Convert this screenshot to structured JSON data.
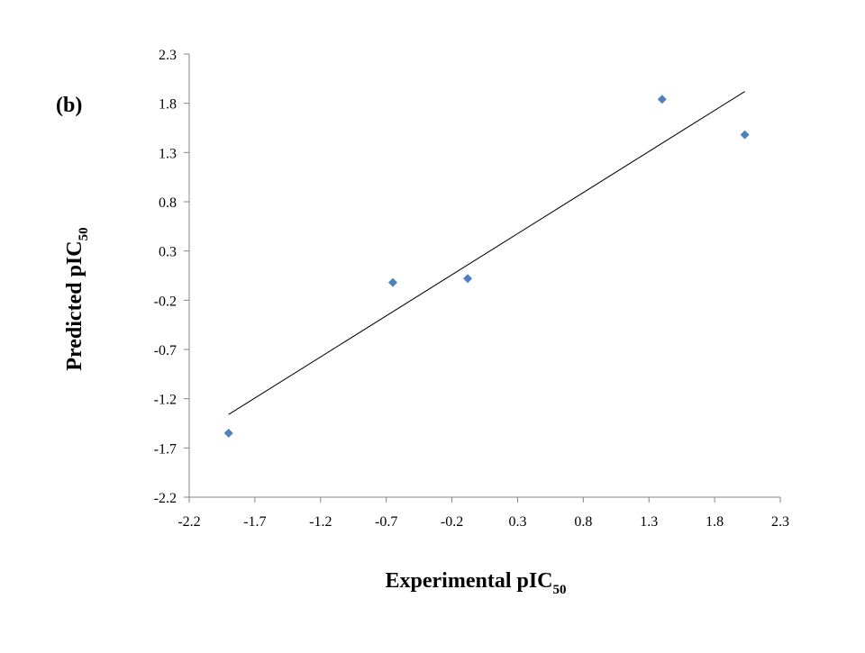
{
  "chart_data": {
    "type": "scatter",
    "panel_label": "(b)",
    "xlabel": {
      "main": "Experimental pIC",
      "sub": "50"
    },
    "ylabel": {
      "main": "Predicted pIC",
      "sub": "50"
    },
    "xlim": [
      -2.2,
      2.3
    ],
    "ylim": [
      -2.2,
      2.3
    ],
    "xticks": [
      "-2.2",
      "-1.7",
      "-1.2",
      "-0.7",
      "-0.2",
      "0.3",
      "0.8",
      "1.3",
      "1.8",
      "2.3"
    ],
    "yticks": [
      "2.3",
      "1.8",
      "1.3",
      "0.8",
      "0.3",
      "-0.2",
      "-0.7",
      "-1.2",
      "-1.7",
      "-2.2"
    ],
    "grid": false,
    "legend": "none",
    "marker_color": "#4F81BD",
    "line_color": "#000000",
    "series": [
      {
        "points": [
          {
            "x": -1.9,
            "y": -1.55
          },
          {
            "x": -0.65,
            "y": -0.02
          },
          {
            "x": -0.08,
            "y": 0.02
          },
          {
            "x": 1.4,
            "y": 1.84
          },
          {
            "x": 2.03,
            "y": 1.48
          }
        ]
      }
    ],
    "trendline": {
      "x": [
        -1.9,
        2.03
      ],
      "y": [
        -1.36,
        1.92
      ]
    }
  }
}
